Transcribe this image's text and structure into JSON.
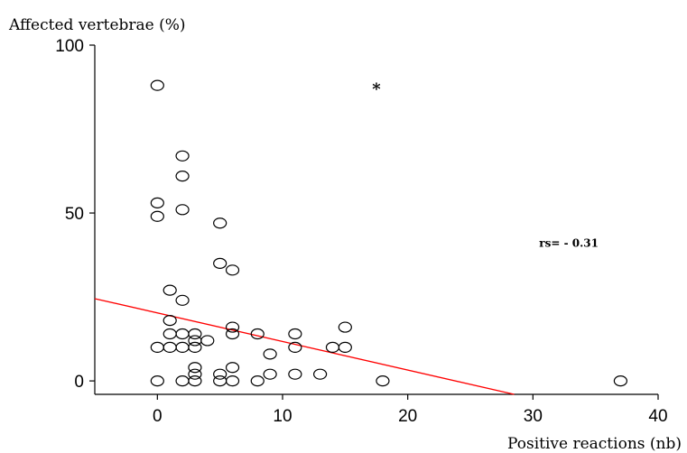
{
  "chart_data": {
    "type": "scatter",
    "title": "",
    "ylabel": "Affected vertebrae (%)",
    "xlabel": "Positive reactions (nb)",
    "xlim": [
      -5,
      40
    ],
    "ylim": [
      -4,
      100
    ],
    "x_ticks": [
      0,
      10,
      20,
      30,
      40
    ],
    "y_ticks": [
      0,
      50,
      100
    ],
    "grid": false,
    "points": [
      {
        "x": 0,
        "y": 88
      },
      {
        "x": 0,
        "y": 53
      },
      {
        "x": 0,
        "y": 49
      },
      {
        "x": 0,
        "y": 10
      },
      {
        "x": 0,
        "y": 0
      },
      {
        "x": 1,
        "y": 27
      },
      {
        "x": 1,
        "y": 18
      },
      {
        "x": 1,
        "y": 14
      },
      {
        "x": 1,
        "y": 10
      },
      {
        "x": 2,
        "y": 67
      },
      {
        "x": 2,
        "y": 61
      },
      {
        "x": 2,
        "y": 51
      },
      {
        "x": 2,
        "y": 24
      },
      {
        "x": 2,
        "y": 14
      },
      {
        "x": 2,
        "y": 10
      },
      {
        "x": 2,
        "y": 0
      },
      {
        "x": 3,
        "y": 14
      },
      {
        "x": 3,
        "y": 12
      },
      {
        "x": 3,
        "y": 10
      },
      {
        "x": 3,
        "y": 4
      },
      {
        "x": 3,
        "y": 2
      },
      {
        "x": 3,
        "y": 0
      },
      {
        "x": 4,
        "y": 12
      },
      {
        "x": 5,
        "y": 47
      },
      {
        "x": 5,
        "y": 35
      },
      {
        "x": 5,
        "y": 2
      },
      {
        "x": 5,
        "y": 0
      },
      {
        "x": 6,
        "y": 33
      },
      {
        "x": 6,
        "y": 16
      },
      {
        "x": 6,
        "y": 14
      },
      {
        "x": 6,
        "y": 4
      },
      {
        "x": 6,
        "y": 0
      },
      {
        "x": 8,
        "y": 14
      },
      {
        "x": 8,
        "y": 0
      },
      {
        "x": 9,
        "y": 8
      },
      {
        "x": 9,
        "y": 2
      },
      {
        "x": 11,
        "y": 14
      },
      {
        "x": 11,
        "y": 10
      },
      {
        "x": 11,
        "y": 2
      },
      {
        "x": 13,
        "y": 2
      },
      {
        "x": 14,
        "y": 10
      },
      {
        "x": 15,
        "y": 16
      },
      {
        "x": 15,
        "y": 10
      },
      {
        "x": 18,
        "y": 0
      },
      {
        "x": 37,
        "y": 0
      }
    ],
    "regression_line": {
      "x": [
        -5,
        28.5
      ],
      "y": [
        24.5,
        -4
      ],
      "color": "#ff0000"
    },
    "annotations": [
      {
        "text": "*",
        "x": 17.5,
        "y": 88
      },
      {
        "text": "rs= - 0.31",
        "x": 30.5,
        "y": 41
      }
    ]
  }
}
